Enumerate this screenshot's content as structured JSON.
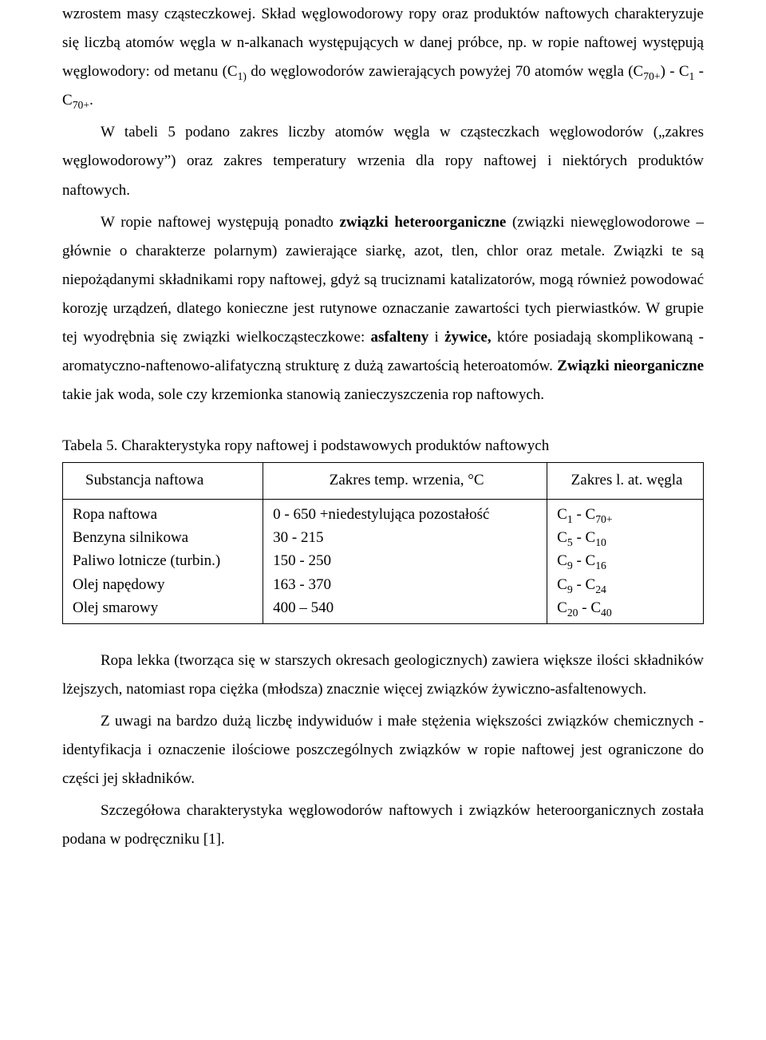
{
  "paragraphs": {
    "p1_a": "wzrostem masy cząsteczkowej. Skład węglowodorowy ropy oraz produktów naftowych charakteryzuje się liczbą atomów węgla w n-alkanach występujących w danej próbce, np. w ropie naftowej występują węglowodory: od metanu (C",
    "p1_sub1": "1)",
    "p1_b": " do węglowodorów zawierających powyżej 70 atomów węgla (C",
    "p1_sub2": "70+",
    "p1_c": ") -  C",
    "p1_sub3": "1",
    "p1_d": " - C",
    "p1_sub4": "70+",
    "p1_e": ".",
    "p2": "W tabeli 5 podano zakres liczby atomów węgla w cząsteczkach węglowodorów („zakres węglowodorowy”) oraz zakres temperatury wrzenia dla ropy naftowej i niektórych produktów naftowych.",
    "p3_a": "W ropie naftowej występują ponadto ",
    "p3_bold1": "związki heteroorganiczne",
    "p3_b": " (związki niewęglowodorowe – głównie o charakterze polarnym) zawierające siarkę, azot, tlen, chlor oraz metale. Związki te są niepożądanymi składnikami ropy naftowej, gdyż są truciznami katalizatorów, mogą również powodować korozję urządzeń, dlatego konieczne jest rutynowe oznaczanie zawartości tych pierwiastków. W grupie tej wyodrębnia się związki wielkocząsteczkowe: ",
    "p3_bold2": "asfalteny",
    "p3_c": " i ",
    "p3_bold3": "żywice,",
    "p3_d": " które posiadają skomplikowaną - aromatyczno-naftenowo-alifatyczną strukturę z dużą zawartością heteroatomów. ",
    "p3_bold4": "Związki nieorganiczne",
    "p3_e": " takie jak woda, sole czy krzemionka stanowią zanieczyszczenia rop naftowych.",
    "table_caption": "Tabela 5. Charakterystyka ropy naftowej i podstawowych produktów naftowych",
    "p4": "Ropa lekka (tworząca się w starszych okresach geologicznych) zawiera większe ilości składników lżejszych, natomiast ropa ciężka (młodsza) znacznie więcej związków żywiczno-asfaltenowych.",
    "p5": "Z uwagi na bardzo dużą liczbę indywiduów i małe stężenia większości związków chemicznych - identyfikacja i oznaczenie ilościowe poszczególnych związków w ropie naftowej jest ograniczone do części jej składników.",
    "p6": "Szczegółowa charakterystyka węglowodorów naftowych i związków heteroorganicznych została podana w podręczniku [1]."
  },
  "table": {
    "headers": [
      "Substancja naftowa",
      "Zakres temp. wrzenia, °C",
      "Zakres  l. at. węgla"
    ],
    "col1": [
      "Ropa naftowa",
      "Benzyna silnikowa",
      "Paliwo lotnicze (turbin.)",
      "Olej napędowy",
      "Olej smarowy"
    ],
    "col2": [
      "0 - 650 +niedestylująca pozostałość",
      "30 - 215",
      "150 - 250",
      "163 - 370",
      "400 – 540"
    ],
    "col3": [
      {
        "a": "C",
        "s1": "1",
        "b": " - C",
        "s2": "70+"
      },
      {
        "a": "C",
        "s1": "5",
        "b": " - C",
        "s2": "10"
      },
      {
        "a": "C",
        "s1": "9",
        "b": " - C",
        "s2": "16"
      },
      {
        "a": "C",
        "s1": "9",
        "b": " - C",
        "s2": "24"
      },
      {
        "a": "C",
        "s1": "20",
        "b": " - C",
        "s2": "40"
      }
    ]
  }
}
